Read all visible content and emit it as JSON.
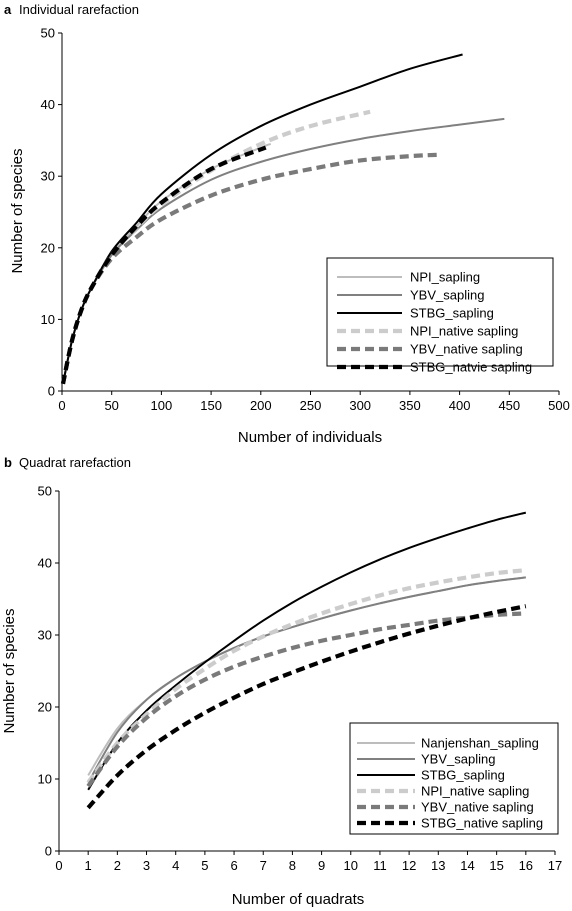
{
  "figure": {
    "colors": {
      "light": "#bdbdbd",
      "mid": "#808080",
      "dark": "#000000",
      "dash_light": "#cccccc",
      "dash_mid": "#7a7a7a",
      "dash_dark": "#000000"
    }
  },
  "chart_data": [
    {
      "type": "line",
      "panel": "a",
      "title": "Individual rarefaction",
      "xlabel": "Number of individuals",
      "ylabel": "Number of species",
      "xlim": [
        0,
        500
      ],
      "ylim": [
        0,
        50
      ],
      "xticks": [
        "0",
        "50",
        "100",
        "150",
        "200",
        "250",
        "300",
        "350",
        "400",
        "450",
        "500"
      ],
      "yticks": [
        "0",
        "10",
        "20",
        "30",
        "40",
        "50"
      ],
      "grid": false,
      "legend_position": "bottom-right",
      "series": [
        {
          "name": "NPI_sapling",
          "style": "solid",
          "color": "#bdbdbd",
          "points": [
            [
              1,
              1
            ],
            [
              10,
              7
            ],
            [
              20,
              11.5
            ],
            [
              30,
              14.5
            ],
            [
              50,
              19
            ],
            [
              75,
              23
            ],
            [
              100,
              26.5
            ],
            [
              150,
              31
            ],
            [
              200,
              34
            ],
            [
              210,
              34.5
            ]
          ]
        },
        {
          "name": "YBV_sapling",
          "style": "solid",
          "color": "#808080",
          "points": [
            [
              1,
              1
            ],
            [
              10,
              7
            ],
            [
              20,
              11.5
            ],
            [
              30,
              14.5
            ],
            [
              50,
              19
            ],
            [
              75,
              22.5
            ],
            [
              100,
              25.5
            ],
            [
              150,
              29.5
            ],
            [
              200,
              32
            ],
            [
              250,
              33.8
            ],
            [
              300,
              35.2
            ],
            [
              350,
              36.3
            ],
            [
              400,
              37.2
            ],
            [
              445,
              38
            ]
          ]
        },
        {
          "name": "STBG_sapling",
          "style": "solid",
          "color": "#000000",
          "points": [
            [
              1,
              1
            ],
            [
              10,
              7
            ],
            [
              20,
              11.5
            ],
            [
              30,
              14.5
            ],
            [
              50,
              19.5
            ],
            [
              75,
              23.5
            ],
            [
              100,
              27.5
            ],
            [
              150,
              33
            ],
            [
              200,
              37
            ],
            [
              250,
              40
            ],
            [
              300,
              42.5
            ],
            [
              350,
              45
            ],
            [
              403,
              47
            ]
          ]
        },
        {
          "name": "NPI_native sapling",
          "style": "dashed",
          "color": "#cccccc",
          "points": [
            [
              1,
              1
            ],
            [
              10,
              7
            ],
            [
              20,
              11.5
            ],
            [
              30,
              14.5
            ],
            [
              50,
              19
            ],
            [
              75,
              22.8
            ],
            [
              100,
              26
            ],
            [
              150,
              30.8
            ],
            [
              200,
              34.5
            ],
            [
              250,
              37
            ],
            [
              310,
              39
            ]
          ]
        },
        {
          "name": "YBV_native sapling",
          "style": "dashed",
          "color": "#7a7a7a",
          "points": [
            [
              1,
              1
            ],
            [
              10,
              7
            ],
            [
              20,
              11.5
            ],
            [
              30,
              14.5
            ],
            [
              50,
              18.5
            ],
            [
              75,
              21.5
            ],
            [
              100,
              24
            ],
            [
              150,
              27.3
            ],
            [
              200,
              29.5
            ],
            [
              250,
              31
            ],
            [
              300,
              32.2
            ],
            [
              350,
              32.8
            ],
            [
              380,
              33
            ]
          ]
        },
        {
          "name": "STBG_natvie sapling",
          "style": "dashed",
          "color": "#000000",
          "points": [
            [
              1,
              1
            ],
            [
              10,
              7
            ],
            [
              20,
              11.5
            ],
            [
              30,
              14.5
            ],
            [
              50,
              19
            ],
            [
              75,
              23
            ],
            [
              100,
              26.3
            ],
            [
              150,
              31
            ],
            [
              205,
              34
            ]
          ]
        }
      ]
    },
    {
      "type": "line",
      "panel": "b",
      "title": "Quadrat rarefaction",
      "xlabel": "Number of quadrats",
      "ylabel": "Number of species",
      "xlim": [
        0,
        17
      ],
      "ylim": [
        0,
        50
      ],
      "xticks": [
        "0",
        "1",
        "2",
        "3",
        "4",
        "5",
        "6",
        "7",
        "8",
        "9",
        "10",
        "11",
        "12",
        "13",
        "14",
        "15",
        "16",
        "17"
      ],
      "yticks": [
        "0",
        "10",
        "20",
        "30",
        "40",
        "50"
      ],
      "grid": false,
      "legend_position": "bottom-right",
      "series": [
        {
          "name": "Nanjenshan_sapling",
          "style": "solid",
          "color": "#bdbdbd",
          "points": [
            [
              1,
              10.5
            ],
            [
              2,
              17
            ],
            [
              3,
              21
            ],
            [
              4,
              24
            ],
            [
              5,
              26.3
            ],
            [
              6,
              28.2
            ],
            [
              7,
              29.8
            ],
            [
              8,
              31.1
            ],
            [
              9,
              32.3
            ],
            [
              10,
              33.4
            ],
            [
              11,
              34.4
            ],
            [
              12,
              35.3
            ],
            [
              13,
              36.1
            ],
            [
              14,
              36.9
            ],
            [
              15,
              37.5
            ],
            [
              16,
              38
            ]
          ]
        },
        {
          "name": "YBV_sapling",
          "style": "solid",
          "color": "#808080",
          "points": [
            [
              1,
              9.5
            ],
            [
              2,
              16.5
            ],
            [
              3,
              21
            ],
            [
              4,
              24
            ],
            [
              5,
              26.3
            ],
            [
              6,
              28.2
            ],
            [
              7,
              29.8
            ],
            [
              8,
              31.1
            ],
            [
              9,
              32.3
            ],
            [
              10,
              33.4
            ],
            [
              11,
              34.4
            ],
            [
              12,
              35.3
            ],
            [
              13,
              36.1
            ],
            [
              14,
              36.9
            ],
            [
              15,
              37.5
            ],
            [
              16,
              38
            ]
          ]
        },
        {
          "name": "STBG_sapling",
          "style": "solid",
          "color": "#000000",
          "points": [
            [
              1,
              8.5
            ],
            [
              2,
              15
            ],
            [
              3,
              19.5
            ],
            [
              4,
              23
            ],
            [
              5,
              26.2
            ],
            [
              6,
              29.2
            ],
            [
              7,
              32
            ],
            [
              8,
              34.5
            ],
            [
              9,
              36.7
            ],
            [
              10,
              38.7
            ],
            [
              11,
              40.5
            ],
            [
              12,
              42.1
            ],
            [
              13,
              43.5
            ],
            [
              14,
              44.8
            ],
            [
              15,
              46
            ],
            [
              16,
              47
            ]
          ]
        },
        {
          "name": "NPI_native sapling",
          "style": "dashed",
          "color": "#cccccc",
          "points": [
            [
              1,
              9.5
            ],
            [
              2,
              15
            ],
            [
              3,
              19
            ],
            [
              4,
              22.5
            ],
            [
              5,
              25.3
            ],
            [
              6,
              27.8
            ],
            [
              7,
              29.8
            ],
            [
              8,
              31.5
            ],
            [
              9,
              33
            ],
            [
              10,
              34.3
            ],
            [
              11,
              35.5
            ],
            [
              12,
              36.5
            ],
            [
              13,
              37.3
            ],
            [
              14,
              38
            ],
            [
              15,
              38.6
            ],
            [
              16,
              39
            ]
          ]
        },
        {
          "name": "YBV_native sapling",
          "style": "dashed",
          "color": "#7a7a7a",
          "points": [
            [
              1,
              9
            ],
            [
              2,
              14.5
            ],
            [
              3,
              18.5
            ],
            [
              4,
              21.5
            ],
            [
              5,
              23.8
            ],
            [
              6,
              25.6
            ],
            [
              7,
              27
            ],
            [
              8,
              28.2
            ],
            [
              9,
              29.2
            ],
            [
              10,
              30
            ],
            [
              11,
              30.8
            ],
            [
              12,
              31.4
            ],
            [
              13,
              32
            ],
            [
              14,
              32.4
            ],
            [
              15,
              32.8
            ],
            [
              16,
              33
            ]
          ]
        },
        {
          "name": "STBG_native sapling",
          "style": "dashed",
          "color": "#000000",
          "points": [
            [
              1,
              6
            ],
            [
              2,
              10.5
            ],
            [
              3,
              14
            ],
            [
              4,
              16.8
            ],
            [
              5,
              19.2
            ],
            [
              6,
              21.3
            ],
            [
              7,
              23.2
            ],
            [
              8,
              24.8
            ],
            [
              9,
              26.3
            ],
            [
              10,
              27.7
            ],
            [
              11,
              29
            ],
            [
              12,
              30.2
            ],
            [
              13,
              31.3
            ],
            [
              14,
              32.3
            ],
            [
              15,
              33.2
            ],
            [
              16,
              34
            ]
          ]
        }
      ]
    }
  ]
}
